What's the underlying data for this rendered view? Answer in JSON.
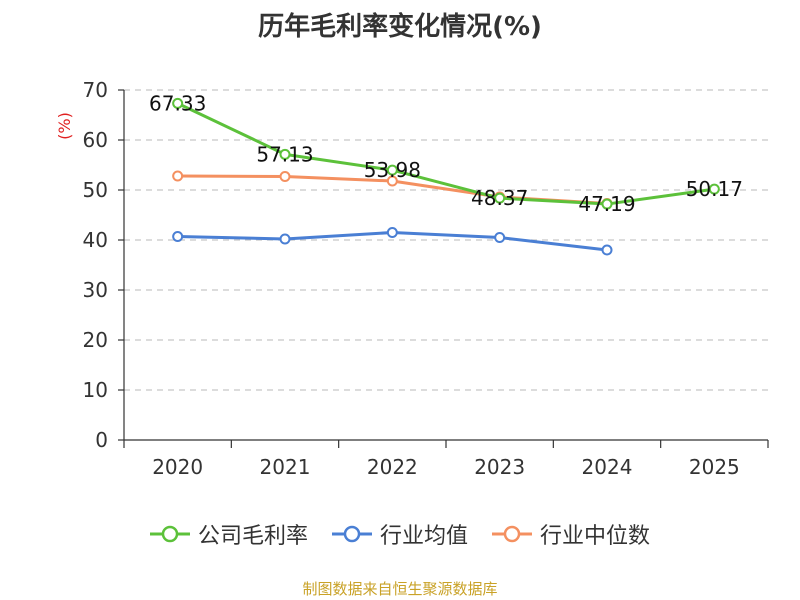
{
  "chart_data": {
    "type": "line",
    "title": "历年毛利率变化情况(%)",
    "ylabel": "(%)",
    "xlabel": "",
    "categories": [
      "2020",
      "2021",
      "2022",
      "2023",
      "2024",
      "2025"
    ],
    "ylim": [
      0,
      70
    ],
    "yticks": [
      0,
      10,
      20,
      30,
      40,
      50,
      60,
      70
    ],
    "grid": true,
    "legend_position": "bottom",
    "series": [
      {
        "name": "公司毛利率",
        "color": "#5cc13a",
        "values": [
          67.33,
          57.13,
          53.98,
          48.37,
          47.19,
          50.17
        ],
        "labels": [
          "67.33",
          "57.13",
          "53.98",
          "48.37",
          "47.19",
          "50.17"
        ]
      },
      {
        "name": "行业均值",
        "color": "#4a7fd4",
        "values": [
          40.7,
          40.2,
          41.5,
          40.5,
          38.0,
          null
        ]
      },
      {
        "name": "行业中位数",
        "color": "#f49060",
        "values": [
          52.8,
          52.7,
          51.8,
          48.6,
          47.3,
          null
        ]
      }
    ],
    "source": "制图数据来自恒生聚源数据库"
  }
}
